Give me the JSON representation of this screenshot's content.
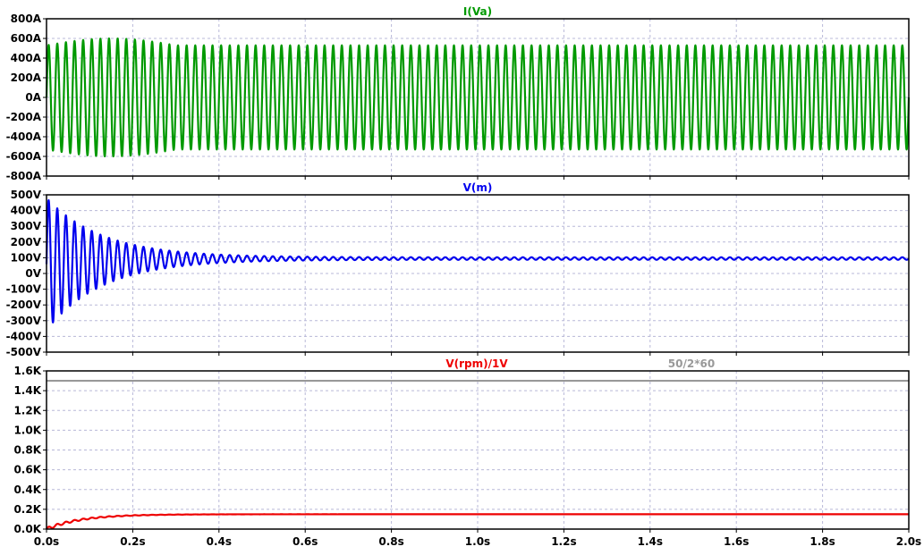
{
  "chart_data": [
    {
      "type": "line",
      "title": "I(Va)",
      "x": {
        "ticks": [
          "0.0s",
          "0.2s",
          "0.4s",
          "0.6s",
          "0.8s",
          "1.0s",
          "1.2s",
          "1.4s",
          "1.6s",
          "1.8s",
          "2.0s"
        ],
        "range": [
          0,
          2.0
        ]
      },
      "y": {
        "ticks": [
          "800A",
          "600A",
          "400A",
          "200A",
          "0A",
          "-200A",
          "-400A",
          "-600A",
          "-800A"
        ],
        "range": [
          -800,
          800
        ]
      },
      "grid": true,
      "series": [
        {
          "name": "I(Va)",
          "color": "#009900",
          "waveform": {
            "frequency_hz": 50,
            "steady_amplitude": 530,
            "offset": 0,
            "startup_peak": 600,
            "startup_until_s": 0.3
          }
        }
      ]
    },
    {
      "type": "line",
      "title": "V(m)",
      "x": {
        "ticks": [
          "0.0s",
          "0.2s",
          "0.4s",
          "0.6s",
          "0.8s",
          "1.0s",
          "1.2s",
          "1.4s",
          "1.6s",
          "1.8s",
          "2.0s"
        ],
        "range": [
          0,
          2.0
        ]
      },
      "y": {
        "ticks": [
          "500V",
          "400V",
          "300V",
          "200V",
          "100V",
          "0V",
          "-100V",
          "-200V",
          "-300V",
          "-400V",
          "-500V"
        ],
        "range": [
          -500,
          500
        ]
      },
      "grid": true,
      "series": [
        {
          "name": "V(m)",
          "color": "#0000ee",
          "waveform": {
            "frequency_hz": 50,
            "initial_amplitude": 420,
            "steady_amplitude": 8,
            "offset_start": 60,
            "offset_steady": 95,
            "decay_time_s": 0.13
          }
        }
      ]
    },
    {
      "type": "line",
      "titles": [
        "V(rpm)/1V",
        "50/2*60"
      ],
      "x": {
        "ticks": [
          "0.0s",
          "0.2s",
          "0.4s",
          "0.6s",
          "0.8s",
          "1.0s",
          "1.2s",
          "1.4s",
          "1.6s",
          "1.8s",
          "2.0s"
        ],
        "range": [
          0,
          2.0
        ]
      },
      "y": {
        "ticks": [
          "1.6K",
          "1.4K",
          "1.2K",
          "1.0K",
          "0.8K",
          "0.6K",
          "0.4K",
          "0.2K",
          "0.0K"
        ],
        "range": [
          0,
          1600
        ]
      },
      "grid": true,
      "series": [
        {
          "name": "V(rpm)/1V",
          "color": "#ee0000",
          "waveform": {
            "steady_value": 150,
            "ripple_amplitude": 15,
            "ripple_frequency_hz": 50,
            "rise_time_s": 0.08,
            "ripple_decay_s": 0.12
          }
        },
        {
          "name": "50/2*60",
          "color": "#999999",
          "constant": 1500
        }
      ]
    }
  ]
}
